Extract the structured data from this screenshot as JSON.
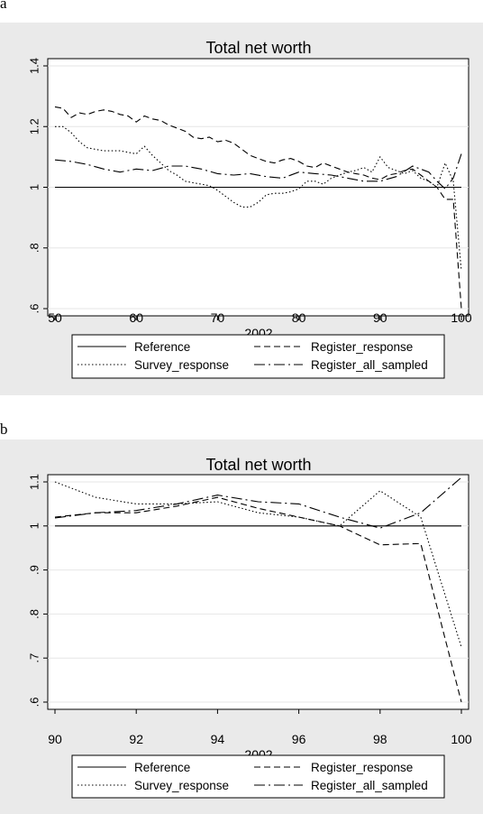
{
  "figure": {
    "panel_a_label": "a",
    "panel_b_label": "b"
  },
  "chart_data": [
    {
      "type": "line",
      "title": "Total net worth",
      "xlabel": "2002",
      "ylabel": "",
      "xlim": [
        50,
        100
      ],
      "ylim": [
        0.6,
        1.4
      ],
      "xticks": [
        50,
        60,
        70,
        80,
        90,
        100
      ],
      "yticks": [
        0.6,
        0.8,
        1,
        1.2,
        1.4
      ],
      "ytick_labels": [
        ".6",
        ".8",
        "1",
        "1.2",
        "1.4"
      ],
      "grid": true,
      "legend_position": "bottom",
      "legend_columns": 2,
      "colors": {
        "background": "#eaeaea",
        "plot": "#ffffff",
        "grid": "#e6e6e6",
        "line": "#000000"
      },
      "series": [
        {
          "name": "Reference",
          "dash": "solid",
          "x": [
            50,
            100
          ],
          "y": [
            1.0,
            1.0
          ]
        },
        {
          "name": "Register_response",
          "dash": "dash",
          "x": [
            50,
            51,
            52,
            53,
            54,
            55,
            56,
            57,
            58,
            59,
            60,
            61,
            62,
            63,
            64,
            65,
            66,
            67,
            68,
            69,
            70,
            71,
            72,
            73,
            74,
            75,
            76,
            77,
            78,
            79,
            80,
            81,
            82,
            83,
            84,
            85,
            86,
            87,
            88,
            89,
            90,
            91,
            92,
            93,
            94,
            95,
            96,
            97,
            98,
            99,
            100
          ],
          "y": [
            1.265,
            1.26,
            1.23,
            1.245,
            1.24,
            1.25,
            1.255,
            1.25,
            1.24,
            1.235,
            1.215,
            1.235,
            1.225,
            1.22,
            1.205,
            1.195,
            1.185,
            1.165,
            1.16,
            1.165,
            1.15,
            1.155,
            1.145,
            1.125,
            1.105,
            1.095,
            1.085,
            1.08,
            1.09,
            1.095,
            1.085,
            1.07,
            1.065,
            1.08,
            1.07,
            1.06,
            1.05,
            1.045,
            1.04,
            1.03,
            1.025,
            1.04,
            1.045,
            1.055,
            1.06,
            1.04,
            1.02,
            1.0,
            0.96,
            0.96,
            0.6
          ]
        },
        {
          "name": "Survey_response",
          "dash": "dot",
          "x": [
            50,
            51,
            52,
            53,
            54,
            55,
            56,
            57,
            58,
            59,
            60,
            61,
            62,
            63,
            64,
            65,
            66,
            67,
            68,
            69,
            70,
            71,
            72,
            73,
            74,
            75,
            76,
            77,
            78,
            79,
            80,
            81,
            82,
            83,
            84,
            85,
            86,
            87,
            88,
            89,
            90,
            91,
            92,
            93,
            94,
            95,
            96,
            97,
            98,
            99,
            100
          ],
          "y": [
            1.2,
            1.2,
            1.18,
            1.15,
            1.13,
            1.125,
            1.12,
            1.12,
            1.12,
            1.115,
            1.11,
            1.135,
            1.105,
            1.08,
            1.055,
            1.04,
            1.02,
            1.015,
            1.01,
            1.005,
            0.99,
            0.97,
            0.95,
            0.935,
            0.935,
            0.95,
            0.975,
            0.98,
            0.98,
            0.985,
            0.995,
            1.02,
            1.02,
            1.01,
            1.03,
            1.04,
            1.05,
            1.055,
            1.065,
            1.05,
            1.1,
            1.065,
            1.055,
            1.045,
            1.055,
            1.03,
            1.02,
            1.0,
            1.08,
            1.02,
            0.725
          ]
        },
        {
          "name": "Register_all_sampled",
          "dash": "dashdot",
          "x": [
            50,
            52,
            54,
            56,
            58,
            60,
            62,
            64,
            66,
            68,
            70,
            72,
            74,
            76,
            78,
            80,
            82,
            84,
            86,
            88,
            90,
            92,
            94,
            96,
            97,
            98,
            99,
            100
          ],
          "y": [
            1.09,
            1.085,
            1.075,
            1.06,
            1.05,
            1.06,
            1.055,
            1.07,
            1.07,
            1.06,
            1.045,
            1.04,
            1.045,
            1.035,
            1.03,
            1.05,
            1.045,
            1.04,
            1.03,
            1.02,
            1.02,
            1.035,
            1.07,
            1.05,
            1.02,
            0.995,
            1.03,
            1.11
          ]
        }
      ]
    },
    {
      "type": "line",
      "title": "Total net worth",
      "xlabel": "2002",
      "ylabel": "",
      "xlim": [
        90,
        100
      ],
      "ylim": [
        0.6,
        1.1
      ],
      "xticks": [
        90,
        92,
        94,
        96,
        98,
        100
      ],
      "yticks": [
        0.6,
        0.7,
        0.8,
        0.9,
        1,
        1.1
      ],
      "ytick_labels": [
        ".6",
        ".7",
        ".8",
        ".9",
        "1",
        "1.1"
      ],
      "grid": true,
      "legend_position": "bottom",
      "legend_columns": 2,
      "colors": {
        "background": "#eaeaea",
        "plot": "#ffffff",
        "grid": "#e6e6e6",
        "line": "#000000"
      },
      "series": [
        {
          "name": "Reference",
          "dash": "solid",
          "x": [
            90,
            100
          ],
          "y": [
            1.0,
            1.0
          ]
        },
        {
          "name": "Register_response",
          "dash": "dash",
          "x": [
            90,
            91,
            92,
            93,
            94,
            95,
            96,
            97,
            98,
            99,
            100
          ],
          "y": [
            1.02,
            1.03,
            1.03,
            1.045,
            1.065,
            1.04,
            1.02,
            1.0,
            0.957,
            0.96,
            0.6
          ]
        },
        {
          "name": "Survey_response",
          "dash": "dot",
          "x": [
            90,
            91,
            92,
            93,
            94,
            95,
            96,
            97,
            98,
            99,
            100
          ],
          "y": [
            1.1,
            1.065,
            1.05,
            1.05,
            1.055,
            1.03,
            1.02,
            1.0,
            1.08,
            1.02,
            0.725
          ]
        },
        {
          "name": "Register_all_sampled",
          "dash": "dashdot",
          "x": [
            90,
            91,
            92,
            93,
            94,
            95,
            96,
            97,
            98,
            99,
            100
          ],
          "y": [
            1.018,
            1.03,
            1.035,
            1.05,
            1.07,
            1.055,
            1.05,
            1.02,
            0.995,
            1.03,
            1.11
          ]
        }
      ]
    }
  ]
}
